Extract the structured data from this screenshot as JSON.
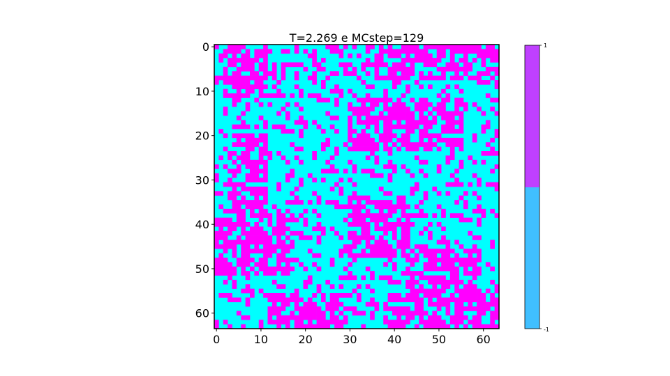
{
  "chart_data": {
    "type": "heatmap",
    "title": "T=2.269 e MCstep=129",
    "xlabel": "",
    "ylabel": "",
    "grid": false,
    "rows": 64,
    "cols": 64,
    "xlim": [
      0,
      64
    ],
    "ylim": [
      64,
      0
    ],
    "xticks": [
      0,
      10,
      20,
      30,
      40,
      50,
      60
    ],
    "yticks": [
      0,
      10,
      20,
      30,
      40,
      50,
      60
    ],
    "xtick_labels": [
      "0",
      "10",
      "20",
      "30",
      "40",
      "50",
      "60"
    ],
    "ytick_labels": [
      "0",
      "10",
      "20",
      "30",
      "40",
      "50",
      "60"
    ],
    "values_domain": [
      -1,
      1
    ],
    "cell_colors": {
      "spin_up": "#ff00ff",
      "spin_down": "#00ffff"
    },
    "colorbar": {
      "position": "right",
      "min": -1,
      "max": 1,
      "min_label": "-1",
      "max_label": "1",
      "upper_color": "#bf40ff",
      "lower_color": "#40bfff"
    },
    "cluster_regions": [
      {
        "spin": 1,
        "row_range": [
          0,
          12
        ],
        "col_range": [
          2,
          12
        ]
      },
      {
        "spin": 1,
        "row_range": [
          0,
          8
        ],
        "col_range": [
          36,
          64
        ]
      },
      {
        "spin": 1,
        "row_range": [
          12,
          24
        ],
        "col_range": [
          30,
          56
        ]
      },
      {
        "spin": 1,
        "row_range": [
          20,
          38
        ],
        "col_range": [
          4,
          12
        ]
      },
      {
        "spin": 1,
        "row_range": [
          38,
          52
        ],
        "col_range": [
          0,
          18
        ]
      },
      {
        "spin": 1,
        "row_range": [
          34,
          48
        ],
        "col_range": [
          30,
          44
        ]
      },
      {
        "spin": 1,
        "row_range": [
          46,
          56
        ],
        "col_range": [
          44,
          60
        ]
      },
      {
        "spin": 1,
        "row_range": [
          56,
          64
        ],
        "col_range": [
          12,
          30
        ]
      },
      {
        "spin": 1,
        "row_range": [
          56,
          64
        ],
        "col_range": [
          38,
          64
        ]
      }
    ]
  }
}
